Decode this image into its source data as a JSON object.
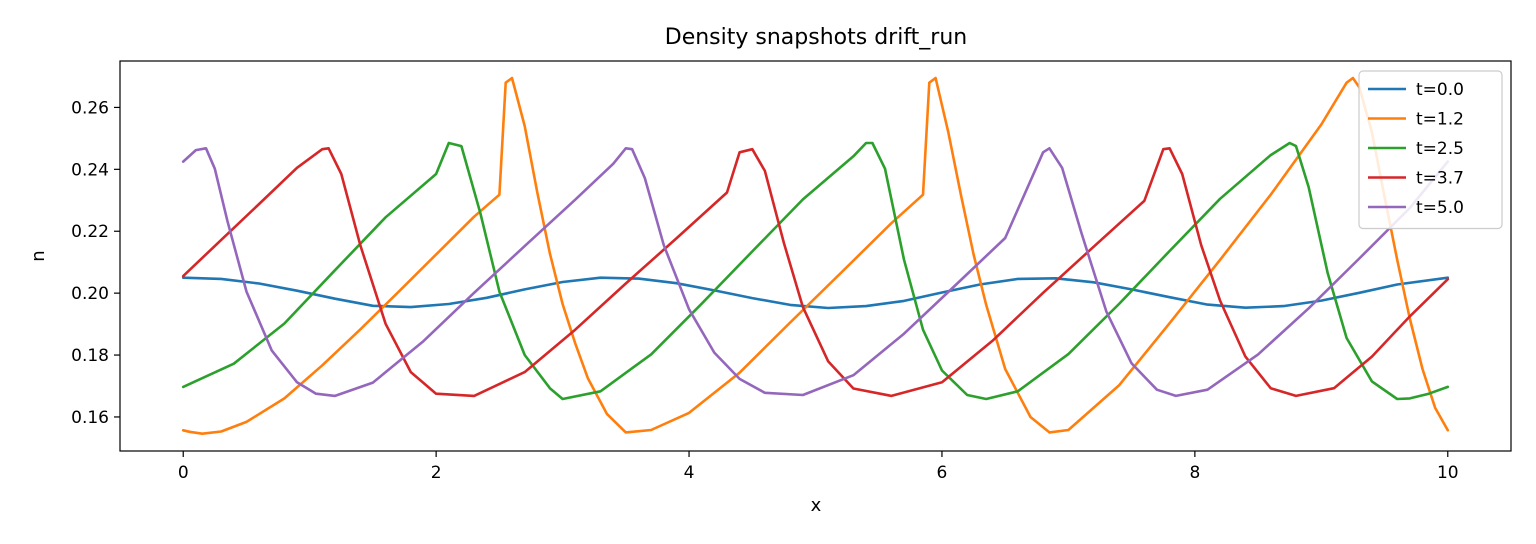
{
  "chart_data": {
    "type": "line",
    "title": "Density snapshots  drift_run",
    "xlabel": "x",
    "ylabel": "n",
    "xlim": [
      -0.5,
      10.5
    ],
    "ylim": [
      0.149,
      0.275
    ],
    "xticks": [
      "0",
      "2",
      "4",
      "6",
      "8",
      "10"
    ],
    "yticks": [
      "0.16",
      "0.18",
      "0.20",
      "0.22",
      "0.24",
      "0.26"
    ],
    "grid": false,
    "legend_position": "top-right",
    "series": [
      {
        "name": "t=0.0",
        "color": "#1f77b4",
        "x": [
          0,
          0.3,
          0.6,
          0.9,
          1.2,
          1.5,
          1.8,
          2.1,
          2.4,
          2.7,
          3.0,
          3.3,
          3.6,
          3.9,
          4.2,
          4.5,
          4.8,
          5.1,
          5.4,
          5.7,
          6.0,
          6.3,
          6.6,
          6.9,
          7.2,
          7.5,
          7.8,
          8.1,
          8.4,
          8.7,
          9.0,
          9.3,
          9.6,
          10.0
        ],
        "y": [
          0.205,
          0.2046,
          0.2031,
          0.2008,
          0.1982,
          0.1959,
          0.1955,
          0.1965,
          0.1985,
          0.2012,
          0.2036,
          0.205,
          0.2047,
          0.2032,
          0.2009,
          0.1984,
          0.1962,
          0.1952,
          0.1958,
          0.1975,
          0.2002,
          0.2028,
          0.2046,
          0.2048,
          0.2035,
          0.2012,
          0.1987,
          0.1963,
          0.1953,
          0.1958,
          0.1976,
          0.2001,
          0.2028,
          0.205
        ]
      },
      {
        "name": "t=1.2",
        "color": "#ff7f0e",
        "x": [
          0,
          0.05,
          0.15,
          0.3,
          0.5,
          0.8,
          1.1,
          1.4,
          1.7,
          2.0,
          2.3,
          2.5,
          2.55,
          2.6,
          2.7,
          2.8,
          2.9,
          3.0,
          3.1,
          3.2,
          3.35,
          3.5,
          3.7,
          4.0,
          4.4,
          4.8,
          5.2,
          5.6,
          5.85,
          5.9,
          5.95,
          6.05,
          6.15,
          6.25,
          6.35,
          6.5,
          6.7,
          6.85,
          7.0,
          7.4,
          7.8,
          8.2,
          8.6,
          9.0,
          9.2,
          9.25,
          9.3,
          9.4,
          9.5,
          9.6,
          9.7,
          9.8,
          9.9,
          10.0
        ],
        "y": [
          0.1557,
          0.1552,
          0.1546,
          0.1553,
          0.1584,
          0.166,
          0.1767,
          0.1883,
          0.2003,
          0.2125,
          0.2247,
          0.2318,
          0.268,
          0.2695,
          0.254,
          0.2325,
          0.2128,
          0.1965,
          0.1838,
          0.1725,
          0.161,
          0.155,
          0.1558,
          0.1613,
          0.1743,
          0.1905,
          0.2065,
          0.2226,
          0.2318,
          0.268,
          0.2695,
          0.252,
          0.2318,
          0.2125,
          0.1962,
          0.1755,
          0.16,
          0.155,
          0.1558,
          0.1702,
          0.1903,
          0.2108,
          0.2318,
          0.2545,
          0.268,
          0.2695,
          0.2665,
          0.252,
          0.2312,
          0.2108,
          0.1918,
          0.1755,
          0.163,
          0.1557
        ]
      },
      {
        "name": "t=2.5",
        "color": "#2ca02c",
        "x": [
          0,
          0.4,
          0.8,
          1.2,
          1.6,
          2.0,
          2.1,
          2.2,
          2.35,
          2.5,
          2.7,
          2.9,
          3.0,
          3.3,
          3.7,
          4.1,
          4.5,
          4.9,
          5.3,
          5.4,
          5.45,
          5.55,
          5.7,
          5.85,
          6.0,
          6.2,
          6.35,
          6.6,
          7.0,
          7.4,
          7.8,
          8.2,
          8.6,
          8.75,
          8.8,
          8.9,
          9.05,
          9.2,
          9.4,
          9.6,
          9.7,
          9.85,
          10.0
        ],
        "y": [
          0.1697,
          0.1772,
          0.1902,
          0.2074,
          0.2245,
          0.2385,
          0.2485,
          0.2475,
          0.2258,
          0.2005,
          0.18,
          0.1693,
          0.1658,
          0.1683,
          0.1802,
          0.1966,
          0.2135,
          0.2303,
          0.2442,
          0.2485,
          0.2485,
          0.2402,
          0.2108,
          0.1882,
          0.175,
          0.1671,
          0.1658,
          0.1683,
          0.1803,
          0.1965,
          0.2136,
          0.2305,
          0.2446,
          0.2485,
          0.2475,
          0.2342,
          0.2066,
          0.1855,
          0.1715,
          0.1658,
          0.166,
          0.1675,
          0.1697
        ]
      },
      {
        "name": "t=3.7",
        "color": "#d62728",
        "x": [
          0,
          0.3,
          0.6,
          0.9,
          1.1,
          1.15,
          1.25,
          1.4,
          1.6,
          1.8,
          2.0,
          2.3,
          2.7,
          3.1,
          3.5,
          3.9,
          4.3,
          4.4,
          4.5,
          4.6,
          4.75,
          4.9,
          5.1,
          5.3,
          5.6,
          6.0,
          6.4,
          6.8,
          7.2,
          7.6,
          7.75,
          7.8,
          7.9,
          8.05,
          8.2,
          8.4,
          8.6,
          8.8,
          9.1,
          9.4,
          9.7,
          10.0
        ],
        "y": [
          0.2055,
          0.2172,
          0.2288,
          0.2405,
          0.2465,
          0.2468,
          0.2385,
          0.2155,
          0.1901,
          0.1745,
          0.1675,
          0.1668,
          0.1745,
          0.1882,
          0.2031,
          0.2177,
          0.2325,
          0.2455,
          0.2465,
          0.2395,
          0.2162,
          0.1955,
          0.178,
          0.1692,
          0.1668,
          0.1712,
          0.1846,
          0.2001,
          0.215,
          0.2298,
          0.2465,
          0.2468,
          0.2385,
          0.2155,
          0.1975,
          0.1795,
          0.1693,
          0.1668,
          0.1693,
          0.1795,
          0.1925,
          0.2045
        ]
      },
      {
        "name": "t=5.0",
        "color": "#9467bd",
        "x": [
          0,
          0.1,
          0.18,
          0.25,
          0.35,
          0.5,
          0.7,
          0.9,
          1.05,
          1.2,
          1.5,
          1.9,
          2.3,
          2.7,
          3.1,
          3.4,
          3.5,
          3.55,
          3.65,
          3.8,
          4.0,
          4.2,
          4.4,
          4.6,
          4.9,
          5.3,
          5.7,
          6.1,
          6.5,
          6.8,
          6.85,
          6.95,
          7.1,
          7.3,
          7.5,
          7.7,
          7.85,
          8.1,
          8.5,
          8.9,
          9.3,
          9.7,
          10.0
        ],
        "y": [
          0.2425,
          0.2462,
          0.2468,
          0.2402,
          0.2232,
          0.2005,
          0.1815,
          0.1712,
          0.1675,
          0.1668,
          0.1711,
          0.1845,
          0.2001,
          0.2152,
          0.2302,
          0.2418,
          0.2468,
          0.2465,
          0.2372,
          0.2155,
          0.1948,
          0.1808,
          0.1723,
          0.1678,
          0.1671,
          0.1735,
          0.1869,
          0.2023,
          0.2178,
          0.2455,
          0.2468,
          0.2405,
          0.2198,
          0.1941,
          0.1773,
          0.1688,
          0.1668,
          0.1688,
          0.1802,
          0.1951,
          0.2112,
          0.2275,
          0.2425
        ]
      }
    ]
  }
}
